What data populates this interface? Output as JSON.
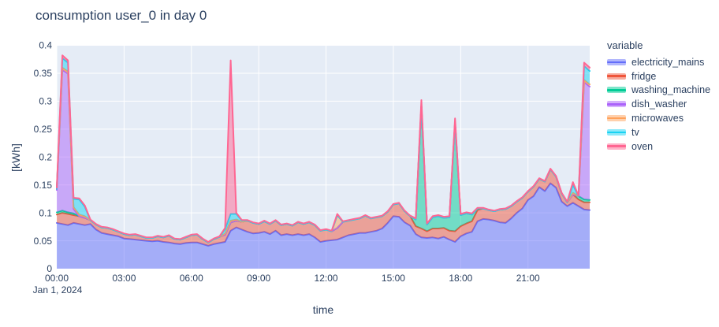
{
  "title": "consumption user_0 in day 0",
  "legend": {
    "title": "variable"
  },
  "axes": {
    "x_title": "time",
    "y_title": "[kWh]",
    "x_annotation": "Jan 1, 2024"
  },
  "colors": {
    "text": "#2a3f5f",
    "plot_bg": "#E5ECF6",
    "grid": "#ffffff",
    "paper_bg": "#ffffff"
  },
  "chart_data": {
    "type": "area",
    "stacked": true,
    "title": "consumption user_0 in day 0",
    "xlabel": "time",
    "ylabel": "[kWh]",
    "date": "Jan 1, 2024",
    "ylim": [
      0,
      0.4
    ],
    "x_start_hour": 0,
    "x_end_hour": 23.75,
    "x_step_hours": 0.25,
    "grid": true,
    "legend_position": "right",
    "xticks": [
      {
        "h": 0,
        "label": "00:00"
      },
      {
        "h": 3,
        "label": "03:00"
      },
      {
        "h": 6,
        "label": "06:00"
      },
      {
        "h": 9,
        "label": "09:00"
      },
      {
        "h": 12,
        "label": "12:00"
      },
      {
        "h": 15,
        "label": "15:00"
      },
      {
        "h": 18,
        "label": "18:00"
      },
      {
        "h": 21,
        "label": "21:00"
      }
    ],
    "yticks": [
      {
        "v": 0,
        "label": "0"
      },
      {
        "v": 0.05,
        "label": "0.05"
      },
      {
        "v": 0.1,
        "label": "0.1"
      },
      {
        "v": 0.15,
        "label": "0.15"
      },
      {
        "v": 0.2,
        "label": "0.2"
      },
      {
        "v": 0.25,
        "label": "0.25"
      },
      {
        "v": 0.3,
        "label": "0.3"
      },
      {
        "v": 0.35,
        "label": "0.35"
      },
      {
        "v": 0.4,
        "label": "0.4"
      }
    ],
    "series": [
      {
        "name": "electricity_mains",
        "color": "#636EFA",
        "values": [
          0.082,
          0.08,
          0.078,
          0.082,
          0.08,
          0.078,
          0.08,
          0.07,
          0.064,
          0.062,
          0.06,
          0.058,
          0.054,
          0.053,
          0.052,
          0.051,
          0.05,
          0.049,
          0.05,
          0.048,
          0.047,
          0.045,
          0.044,
          0.046,
          0.047,
          0.047,
          0.044,
          0.041,
          0.044,
          0.046,
          0.048,
          0.068,
          0.074,
          0.07,
          0.066,
          0.063,
          0.064,
          0.066,
          0.062,
          0.068,
          0.06,
          0.062,
          0.06,
          0.062,
          0.06,
          0.062,
          0.056,
          0.048,
          0.05,
          0.051,
          0.052,
          0.056,
          0.06,
          0.062,
          0.064,
          0.064,
          0.066,
          0.068,
          0.072,
          0.082,
          0.094,
          0.093,
          0.083,
          0.077,
          0.062,
          0.056,
          0.055,
          0.056,
          0.054,
          0.057,
          0.052,
          0.048,
          0.058,
          0.063,
          0.066,
          0.085,
          0.089,
          0.088,
          0.086,
          0.083,
          0.082,
          0.09,
          0.1,
          0.108,
          0.123,
          0.13,
          0.146,
          0.139,
          0.153,
          0.145,
          0.12,
          0.112,
          0.118,
          0.112,
          0.106,
          0.105
        ]
      },
      {
        "name": "fridge",
        "color": "#EF553B",
        "values": [
          0.015,
          0.02,
          0.02,
          0.014,
          0.014,
          0.013,
          0.007,
          0.009,
          0.01,
          0.011,
          0.01,
          0.008,
          0.008,
          0.007,
          0.009,
          0.007,
          0.005,
          0.006,
          0.008,
          0.008,
          0.012,
          0.008,
          0.008,
          0.01,
          0.013,
          0.014,
          0.009,
          0.006,
          0.009,
          0.011,
          0.013,
          0.015,
          0.012,
          0.014,
          0.02,
          0.019,
          0.016,
          0.019,
          0.018,
          0.018,
          0.018,
          0.018,
          0.017,
          0.021,
          0.02,
          0.021,
          0.022,
          0.02,
          0.02,
          0.016,
          0.021,
          0.028,
          0.026,
          0.026,
          0.026,
          0.031,
          0.024,
          0.024,
          0.022,
          0.02,
          0.021,
          0.024,
          0.02,
          0.017,
          0.014,
          0.016,
          0.012,
          0.016,
          0.018,
          0.016,
          0.016,
          0.019,
          0.018,
          0.018,
          0.019,
          0.02,
          0.019,
          0.017,
          0.017,
          0.023,
          0.025,
          0.022,
          0.02,
          0.019,
          0.015,
          0.017,
          0.015,
          0.017,
          0.025,
          0.02,
          0.015,
          0.007,
          0.015,
          0.012,
          0.013,
          0.014
        ]
      },
      {
        "name": "washing_machine",
        "color": "#00CC96",
        "values": [
          0.004,
          0.004,
          0.003,
          0.003,
          0,
          0,
          0,
          0,
          0,
          0,
          0,
          0,
          0,
          0,
          0,
          0,
          0,
          0,
          0,
          0,
          0,
          0,
          0,
          0,
          0,
          0,
          0,
          0,
          0,
          0,
          0,
          0,
          0,
          0,
          0,
          0,
          0,
          0,
          0,
          0,
          0,
          0,
          0,
          0,
          0,
          0,
          0,
          0,
          0,
          0,
          0,
          0,
          0,
          0,
          0,
          0,
          0,
          0,
          0,
          0,
          0,
          0,
          0,
          0,
          0.012,
          0.22,
          0.012,
          0.02,
          0.022,
          0.018,
          0.024,
          0.195,
          0.02,
          0.018,
          0.012,
          0.003,
          0,
          0,
          0,
          0,
          0,
          0,
          0,
          0,
          0,
          0,
          0,
          0,
          0,
          0,
          0,
          0,
          0,
          0.006,
          0.005,
          0.004
        ]
      },
      {
        "name": "dish_washer",
        "color": "#AB63FA",
        "values": [
          0.04,
          0.252,
          0.248,
          0.008,
          0,
          0,
          0,
          0,
          0,
          0,
          0,
          0,
          0,
          0,
          0,
          0,
          0,
          0,
          0,
          0,
          0,
          0,
          0,
          0,
          0,
          0,
          0,
          0,
          0,
          0,
          0,
          0,
          0,
          0,
          0,
          0,
          0,
          0,
          0,
          0,
          0,
          0,
          0,
          0,
          0,
          0,
          0,
          0,
          0,
          0,
          0,
          0,
          0,
          0,
          0,
          0,
          0,
          0,
          0,
          0,
          0,
          0,
          0,
          0,
          0,
          0,
          0,
          0,
          0,
          0,
          0,
          0,
          0,
          0,
          0,
          0,
          0,
          0,
          0,
          0,
          0,
          0,
          0,
          0,
          0,
          0,
          0,
          0,
          0,
          0,
          0,
          0,
          0,
          0,
          0.21,
          0.203
        ]
      },
      {
        "name": "microwaves",
        "color": "#FFA15A",
        "values": [
          0.002,
          0.004,
          0.004,
          0.003,
          0.003,
          0.003,
          0,
          0,
          0,
          0,
          0,
          0,
          0,
          0,
          0,
          0,
          0,
          0,
          0,
          0,
          0,
          0,
          0,
          0,
          0,
          0,
          0,
          0,
          0,
          0,
          0.002,
          0.003,
          0.002,
          0,
          0,
          0,
          0,
          0,
          0,
          0,
          0,
          0,
          0,
          0,
          0,
          0,
          0,
          0,
          0,
          0,
          0.023,
          0,
          0,
          0,
          0,
          0,
          0,
          0,
          0,
          0,
          0,
          0,
          0,
          0,
          0,
          0,
          0,
          0,
          0,
          0,
          0,
          0,
          0,
          0,
          0,
          0,
          0,
          0,
          0,
          0,
          0,
          0,
          0,
          0,
          0,
          0,
          0,
          0,
          0,
          0,
          0,
          0,
          0.003,
          0,
          0.004,
          0.004
        ]
      },
      {
        "name": "tv",
        "color": "#19D3F3",
        "values": [
          0,
          0.017,
          0.016,
          0.015,
          0.027,
          0.017,
          0,
          0,
          0,
          0,
          0,
          0,
          0,
          0,
          0,
          0,
          0,
          0,
          0,
          0,
          0,
          0,
          0,
          0,
          0,
          0,
          0,
          0,
          0,
          0,
          0.008,
          0.012,
          0.01,
          0.002,
          0,
          0,
          0,
          0,
          0,
          0,
          0,
          0,
          0,
          0,
          0,
          0,
          0,
          0,
          0,
          0,
          0,
          0,
          0,
          0,
          0,
          0,
          0,
          0,
          0,
          0,
          0,
          0,
          0,
          0,
          0,
          0,
          0,
          0,
          0,
          0,
          0,
          0,
          0,
          0,
          0,
          0,
          0,
          0,
          0,
          0,
          0,
          0,
          0,
          0,
          0,
          0,
          0,
          0,
          0,
          0,
          0,
          0,
          0.014,
          0,
          0.025,
          0.024
        ]
      },
      {
        "name": "oven",
        "color": "#FF6692",
        "values": [
          0.002,
          0.005,
          0.004,
          0.002,
          0.002,
          0.002,
          0.001,
          0.001,
          0.001,
          0.001,
          0.001,
          0.001,
          0.001,
          0.001,
          0.001,
          0.001,
          0.001,
          0.001,
          0.001,
          0.001,
          0.001,
          0.001,
          0.001,
          0.001,
          0.001,
          0.001,
          0.001,
          0.001,
          0.001,
          0.001,
          0.002,
          0.275,
          0.002,
          0.001,
          0.001,
          0.001,
          0.001,
          0.001,
          0.001,
          0.001,
          0.001,
          0.001,
          0.001,
          0.001,
          0.001,
          0.001,
          0.001,
          0.001,
          0.001,
          0.001,
          0.002,
          0.001,
          0.001,
          0.001,
          0.001,
          0.001,
          0.001,
          0.001,
          0.001,
          0.001,
          0.001,
          0.001,
          0.001,
          0.001,
          0.002,
          0.01,
          0.002,
          0.002,
          0.002,
          0.002,
          0.002,
          0.007,
          0.002,
          0.002,
          0.002,
          0.001,
          0.001,
          0.001,
          0.001,
          0.001,
          0.001,
          0.001,
          0.001,
          0.001,
          0.001,
          0.001,
          0.001,
          0.001,
          0.001,
          0.001,
          0.001,
          0.001,
          0.005,
          0.001,
          0.006,
          0.006
        ]
      }
    ]
  }
}
